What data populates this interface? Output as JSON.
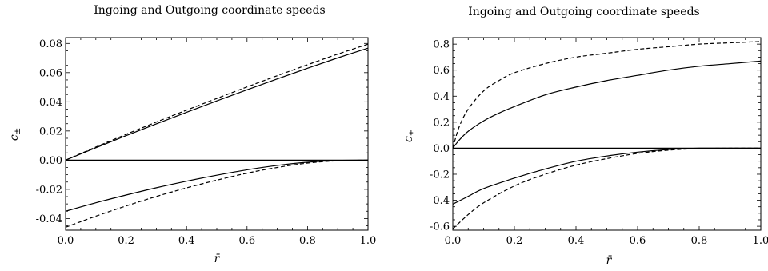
{
  "chart_data": [
    {
      "type": "line",
      "title": "Ingoing and Outgoing coordinate speeds",
      "xlabel": "r̄",
      "ylabel": "c",
      "ylabel_sub": "±",
      "xlim": [
        0,
        1
      ],
      "ylim": [
        -0.048,
        0.084
      ],
      "x_ticks": [
        "0.0",
        "0.2",
        "0.4",
        "0.6",
        "0.8",
        "1.0"
      ],
      "x_tick_values": [
        0,
        0.2,
        0.4,
        0.6,
        0.8,
        1.0
      ],
      "y_ticks": [
        "0.08",
        "0.06",
        "0.04",
        "0.02",
        "0.00",
        "-0.02",
        "-0.04"
      ],
      "y_tick_values": [
        0.08,
        0.06,
        0.04,
        0.02,
        0.0,
        -0.02,
        -0.04
      ],
      "grid": false,
      "series": [
        {
          "style": "solid",
          "x": [
            0,
            0.1,
            0.2,
            0.3,
            0.4,
            0.5,
            0.6,
            0.7,
            0.8,
            0.9,
            1.0
          ],
          "y": [
            0,
            0.0085,
            0.0168,
            0.0249,
            0.0328,
            0.0406,
            0.0482,
            0.0557,
            0.063,
            0.0701,
            0.0768
          ]
        },
        {
          "style": "dashed",
          "x": [
            0,
            0.1,
            0.2,
            0.3,
            0.4,
            0.5,
            0.6,
            0.7,
            0.8,
            0.9,
            1.0
          ],
          "y": [
            0,
            0.009,
            0.0177,
            0.0261,
            0.0343,
            0.0423,
            0.0502,
            0.0579,
            0.0654,
            0.0727,
            0.0795
          ]
        },
        {
          "style": "solid",
          "x": [
            0,
            0.1,
            0.2,
            0.3,
            0.4,
            0.5,
            0.6,
            0.7,
            0.8,
            0.9,
            1.0
          ],
          "y": [
            -0.035,
            -0.0292,
            -0.0239,
            -0.0189,
            -0.0144,
            -0.0103,
            -0.0066,
            -0.0036,
            -0.0014,
            -0.0002,
            0
          ]
        },
        {
          "style": "dashed",
          "x": [
            0,
            0.1,
            0.2,
            0.3,
            0.4,
            0.5,
            0.6,
            0.7,
            0.8,
            0.9,
            1.0
          ],
          "y": [
            -0.046,
            -0.0384,
            -0.0314,
            -0.0249,
            -0.019,
            -0.0137,
            -0.0089,
            -0.005,
            -0.002,
            -0.0004,
            0
          ]
        },
        {
          "style": "zero-line",
          "x": [
            0,
            1.0
          ],
          "y": [
            0,
            0
          ]
        }
      ]
    },
    {
      "type": "line",
      "title": "Ingoing and Outgoing coordinate speeds",
      "xlabel": "r̄",
      "ylabel": "c",
      "ylabel_sub": "±",
      "xlim": [
        0,
        1
      ],
      "ylim": [
        -0.63,
        0.85
      ],
      "x_ticks": [
        "0.0",
        "0.2",
        "0.4",
        "0.6",
        "0.8",
        "1.0"
      ],
      "x_tick_values": [
        0,
        0.2,
        0.4,
        0.6,
        0.8,
        1.0
      ],
      "y_ticks": [
        "0.8",
        "0.6",
        "0.4",
        "0.2",
        "0.0",
        "-0.2",
        "-0.4",
        "-0.6"
      ],
      "y_tick_values": [
        0.8,
        0.6,
        0.4,
        0.2,
        0.0,
        -0.2,
        -0.4,
        -0.6
      ],
      "grid": false,
      "series": [
        {
          "style": "solid",
          "x": [
            0,
            0.02,
            0.05,
            0.1,
            0.15,
            0.2,
            0.3,
            0.4,
            0.5,
            0.6,
            0.7,
            0.8,
            0.9,
            1.0
          ],
          "y": [
            0,
            0.06,
            0.13,
            0.21,
            0.27,
            0.32,
            0.41,
            0.47,
            0.52,
            0.56,
            0.6,
            0.63,
            0.65,
            0.67
          ]
        },
        {
          "style": "dashed",
          "x": [
            0,
            0.02,
            0.05,
            0.1,
            0.15,
            0.2,
            0.3,
            0.4,
            0.5,
            0.6,
            0.7,
            0.8,
            0.9,
            1.0
          ],
          "y": [
            0,
            0.16,
            0.3,
            0.44,
            0.52,
            0.58,
            0.65,
            0.7,
            0.73,
            0.76,
            0.78,
            0.8,
            0.81,
            0.82
          ]
        },
        {
          "style": "solid",
          "x": [
            0,
            0.05,
            0.1,
            0.2,
            0.3,
            0.4,
            0.5,
            0.6,
            0.7,
            0.8,
            0.9,
            1.0
          ],
          "y": [
            -0.43,
            -0.37,
            -0.31,
            -0.23,
            -0.16,
            -0.1,
            -0.06,
            -0.03,
            -0.01,
            0,
            0,
            0
          ]
        },
        {
          "style": "dashed",
          "x": [
            0,
            0.05,
            0.1,
            0.2,
            0.3,
            0.4,
            0.5,
            0.6,
            0.7,
            0.8,
            0.9,
            1.0
          ],
          "y": [
            -0.62,
            -0.51,
            -0.42,
            -0.29,
            -0.2,
            -0.13,
            -0.08,
            -0.04,
            -0.015,
            -0.003,
            0,
            0
          ]
        },
        {
          "style": "zero-line",
          "x": [
            0,
            1.0
          ],
          "y": [
            0,
            0
          ]
        }
      ]
    }
  ]
}
